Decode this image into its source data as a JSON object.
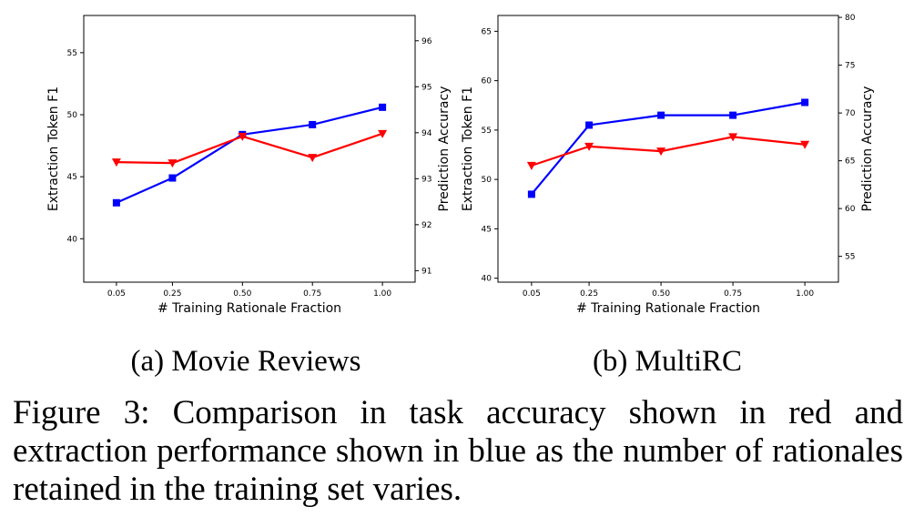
{
  "chart_data": [
    {
      "type": "line",
      "subcaption": "(a) Movie Reviews",
      "x": [
        0.05,
        0.25,
        0.5,
        0.75,
        1.0
      ],
      "xtick_labels": [
        "0.05",
        "0.25",
        "0.50",
        "0.75",
        "1.00"
      ],
      "xlabel": "# Training Rationale Fraction",
      "ylabel_left": "Extraction Token F1",
      "ylabel_right": "Prediction Accuracy",
      "ylim_left": [
        36.5,
        58
      ],
      "yticks_left": [
        40,
        45,
        50,
        55
      ],
      "ylim_right": [
        90.75,
        96.55
      ],
      "yticks_right": [
        91,
        92,
        93,
        94,
        95,
        96
      ],
      "series": [
        {
          "name": "Extraction Token F1",
          "axis": "left",
          "color": "#0000ff",
          "marker": "square",
          "values": [
            42.9,
            44.9,
            48.4,
            49.2,
            50.6
          ]
        },
        {
          "name": "Prediction Accuracy",
          "axis": "right",
          "color": "#ff0000",
          "marker": "triangle-down",
          "values": [
            93.36,
            93.34,
            93.92,
            93.46,
            93.98
          ]
        }
      ]
    },
    {
      "type": "line",
      "subcaption": "(b) MultiRC",
      "x": [
        0.05,
        0.25,
        0.5,
        0.75,
        1.0
      ],
      "xtick_labels": [
        "0.05",
        "0.25",
        "0.50",
        "0.75",
        "1.00"
      ],
      "xlabel": "# Training Rationale Fraction",
      "ylabel_left": "Extraction Token F1",
      "ylabel_right": "Prediction Accuracy",
      "ylim_left": [
        39.6,
        66.6
      ],
      "yticks_left": [
        40,
        45,
        50,
        55,
        60,
        65
      ],
      "ylim_right": [
        52.3,
        80.2
      ],
      "yticks_right": [
        55,
        60,
        65,
        70,
        75,
        80
      ],
      "series": [
        {
          "name": "Extraction Token F1",
          "axis": "left",
          "color": "#0000ff",
          "marker": "square",
          "values": [
            48.5,
            55.5,
            56.5,
            56.5,
            57.8
          ]
        },
        {
          "name": "Prediction Accuracy",
          "axis": "right",
          "color": "#ff0000",
          "marker": "triangle-down",
          "values": [
            64.5,
            66.5,
            66.0,
            67.5,
            66.7
          ]
        }
      ]
    }
  ],
  "caption": "Figure 3: Comparison in task accuracy shown in red and extraction performance shown in blue as the number of rationales retained in the training set varies."
}
